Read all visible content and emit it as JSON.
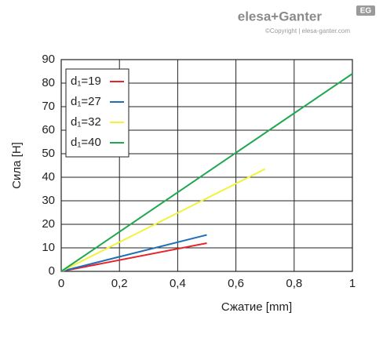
{
  "header": {
    "brand": "elesa+Ganter",
    "copyright": "©Copyright | elesa-ganter.com",
    "badge": "EG"
  },
  "chart_data": {
    "type": "line",
    "xlabel": "Сжатие [mm]",
    "ylabel": "Сила [Н]",
    "xlim": [
      0,
      1
    ],
    "ylim": [
      0,
      90
    ],
    "xticks": [
      0,
      {
        "value": 0.2,
        "label": "0,2"
      },
      {
        "value": 0.4,
        "label": "0,4"
      },
      {
        "value": 0.6,
        "label": "0,6"
      },
      {
        "value": 0.8,
        "label": "0,8"
      },
      1
    ],
    "yticks": [
      0,
      10,
      20,
      30,
      40,
      50,
      60,
      70,
      80,
      90
    ],
    "grid": true,
    "legend": "upper left",
    "series": [
      {
        "name": "d₁=19",
        "color": "#e8232a",
        "x": [
          0,
          0.5
        ],
        "values": [
          0,
          12
        ]
      },
      {
        "name": "d₁=27",
        "color": "#1f6fb5",
        "x": [
          0,
          0.5
        ],
        "values": [
          0,
          15.5
        ]
      },
      {
        "name": "d₁=32",
        "color": "#f2f23a",
        "x": [
          0,
          0.7
        ],
        "values": [
          0,
          43.5
        ]
      },
      {
        "name": "d₁=40",
        "color": "#1fa84f",
        "x": [
          0,
          1
        ],
        "values": [
          0,
          84
        ]
      }
    ]
  }
}
